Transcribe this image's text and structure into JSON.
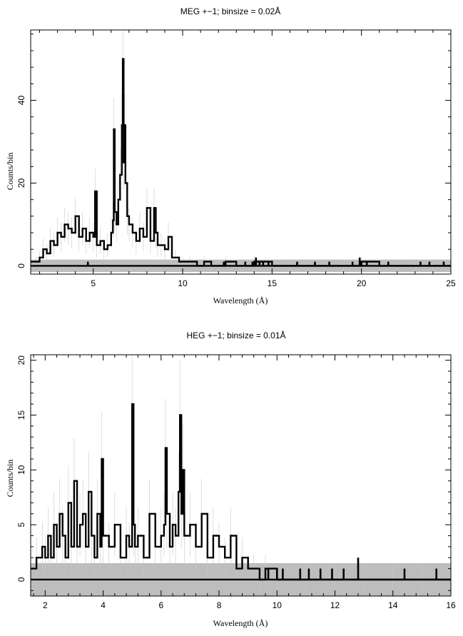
{
  "chart_data": [
    {
      "type": "line",
      "title": "MEG +−1; binsize = 0.02Å",
      "xlabel": "Wavelength (Å)",
      "ylabel": "Counts/bin",
      "xlim": [
        1.5,
        25
      ],
      "ylim": [
        -2,
        57
      ],
      "xticks": [
        5,
        10,
        15,
        20,
        25
      ],
      "yticks": [
        0,
        20,
        40
      ],
      "grid": false,
      "background_band": [
        -1.5,
        1.5
      ],
      "spikes_x": [
        4.7,
        12.3,
        13.5,
        13.9,
        14.1,
        14.3,
        14.5,
        14.8,
        16.4,
        17.4,
        18.2,
        19.5,
        19.9,
        20.3,
        21.5,
        23.3,
        23.8,
        24.6
      ],
      "spikes_y": [
        1,
        1,
        1,
        1,
        2,
        1,
        1,
        1,
        1,
        1,
        1,
        1,
        2,
        1,
        1,
        1,
        1,
        1
      ],
      "x": [
        1.5,
        1.8,
        2.0,
        2.2,
        2.4,
        2.6,
        2.8,
        3.0,
        3.2,
        3.4,
        3.6,
        3.8,
        4.0,
        4.2,
        4.4,
        4.6,
        4.8,
        5.0,
        5.1,
        5.2,
        5.4,
        5.6,
        5.8,
        6.0,
        6.1,
        6.15,
        6.2,
        6.3,
        6.4,
        6.5,
        6.6,
        6.65,
        6.7,
        6.75,
        6.8,
        6.9,
        7.0,
        7.2,
        7.4,
        7.6,
        7.8,
        8.0,
        8.2,
        8.4,
        8.5,
        8.6,
        8.8,
        9.0,
        9.2,
        9.4,
        9.6,
        9.8,
        10.0,
        10.4,
        10.8,
        11.2,
        11.6,
        12.0,
        12.4,
        13.0,
        14.0,
        15.0,
        16.0,
        17.0,
        18.0,
        19.0,
        20.0,
        21.0,
        22.0,
        23.0,
        24.0,
        25.0
      ],
      "y": [
        1,
        1,
        2,
        4,
        3,
        6,
        5,
        8,
        7,
        10,
        9,
        8,
        12,
        7,
        9,
        6,
        8,
        7,
        18,
        5,
        6,
        4,
        5,
        8,
        11,
        33,
        13,
        10,
        16,
        22,
        34,
        50,
        25,
        34,
        20,
        12,
        10,
        8,
        6,
        9,
        7,
        14,
        6,
        14,
        8,
        5,
        5,
        4,
        7,
        2,
        2,
        1,
        1,
        1,
        0,
        1,
        0,
        0,
        1,
        0,
        1,
        0,
        0,
        0,
        0,
        0,
        1,
        0,
        0,
        0,
        0,
        0
      ]
    },
    {
      "type": "line",
      "title": "HEG +−1; binsize = 0.01Å",
      "xlabel": "Wavelength (Å)",
      "ylabel": "Counts/bin",
      "xlim": [
        1.5,
        16
      ],
      "ylim": [
        -1.5,
        20.5
      ],
      "xticks": [
        2,
        4,
        6,
        8,
        10,
        12,
        14,
        16
      ],
      "yticks": [
        0,
        5,
        10,
        15,
        20
      ],
      "grid": false,
      "background_band": [
        -1.5,
        1.5
      ],
      "spikes_x": [
        9.7,
        10.0,
        10.2,
        10.8,
        11.1,
        11.5,
        11.9,
        12.3,
        12.8,
        14.4,
        15.5
      ],
      "spikes_y": [
        1,
        1,
        1,
        1,
        1,
        1,
        1,
        1,
        2,
        1,
        1
      ],
      "x": [
        1.5,
        1.7,
        1.9,
        2.0,
        2.1,
        2.2,
        2.3,
        2.4,
        2.5,
        2.6,
        2.7,
        2.8,
        2.9,
        3.0,
        3.1,
        3.2,
        3.3,
        3.4,
        3.5,
        3.6,
        3.7,
        3.8,
        3.9,
        3.95,
        4.0,
        4.2,
        4.4,
        4.6,
        4.8,
        4.9,
        5.0,
        5.05,
        5.1,
        5.2,
        5.4,
        5.6,
        5.8,
        6.0,
        6.1,
        6.15,
        6.2,
        6.3,
        6.4,
        6.5,
        6.6,
        6.65,
        6.7,
        6.75,
        6.8,
        7.0,
        7.2,
        7.4,
        7.6,
        7.8,
        8.0,
        8.2,
        8.4,
        8.6,
        8.8,
        9.0,
        9.2,
        9.4,
        9.6,
        10.0,
        11.0,
        12.0,
        13.0,
        14.0,
        15.0,
        16.0
      ],
      "y": [
        1,
        2,
        3,
        2,
        4,
        2,
        5,
        3,
        6,
        4,
        2,
        7,
        3,
        9,
        3,
        5,
        6,
        3,
        8,
        4,
        2,
        6,
        3,
        11,
        4,
        3,
        5,
        2,
        4,
        3,
        16,
        5,
        3,
        4,
        2,
        6,
        3,
        4,
        5,
        12,
        6,
        3,
        5,
        4,
        8,
        15,
        6,
        10,
        4,
        5,
        3,
        6,
        2,
        4,
        3,
        2,
        4,
        1,
        2,
        1,
        1,
        0,
        1,
        0,
        0,
        0,
        0,
        0,
        0,
        0
      ]
    }
  ]
}
